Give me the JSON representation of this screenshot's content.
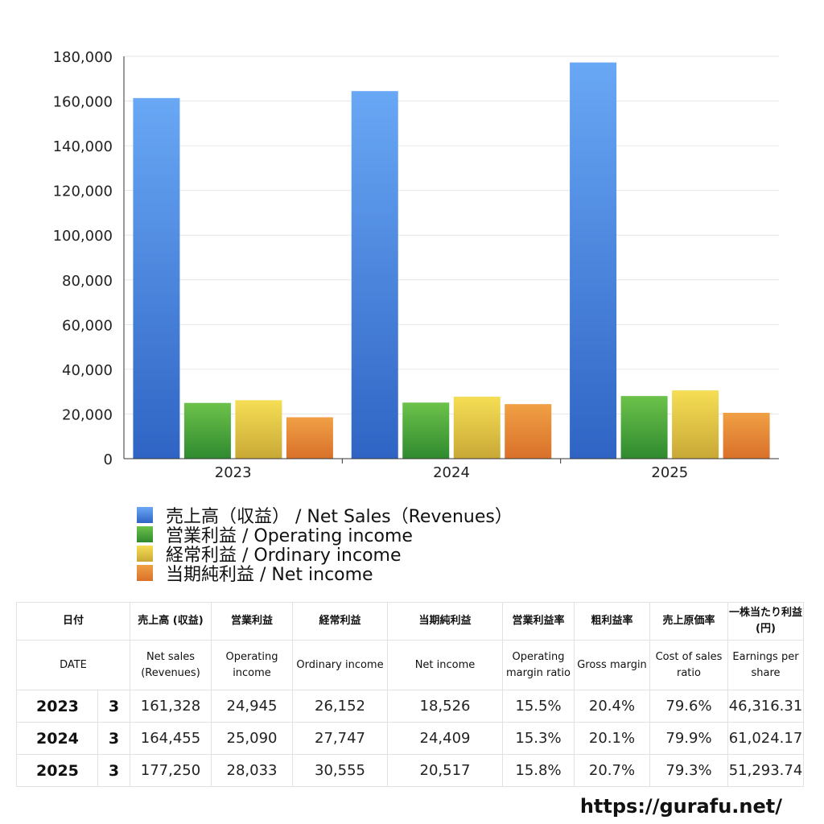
{
  "chart_data": {
    "type": "bar",
    "categories": [
      "2023",
      "2024",
      "2025"
    ],
    "series": [
      {
        "name": "売上高（収益） / Net Sales（Revenues）",
        "values": [
          161328,
          164455,
          177250
        ],
        "color_top": "#69a8f5",
        "color_bottom": "#2f64c4"
      },
      {
        "name": "営業利益 / Operating income",
        "values": [
          24945,
          25090,
          28033
        ],
        "color_top": "#6cc24a",
        "color_bottom": "#2f8a2f"
      },
      {
        "name": "経常利益 / Ordinary income",
        "values": [
          26152,
          27747,
          30555
        ],
        "color_top": "#f5de55",
        "color_bottom": "#c9a836"
      },
      {
        "name": "当期純利益 / Net income",
        "values": [
          18526,
          24409,
          20517
        ],
        "color_top": "#f0a045",
        "color_bottom": "#d9702a"
      }
    ],
    "ylim": [
      0,
      180000
    ],
    "yticks": [
      "0",
      "20,000",
      "40,000",
      "60,000",
      "80,000",
      "100,000",
      "120,000",
      "140,000",
      "160,000",
      "180,000"
    ],
    "grid": true,
    "legend_position": "bottom"
  },
  "table": {
    "header_jp": [
      "日付",
      "売上高 (収益)",
      "営業利益",
      "経常利益",
      "当期純利益",
      "営業利益率",
      "粗利益率",
      "売上原価率",
      "一株当たり利益(円)"
    ],
    "header_en": [
      "DATE",
      "Net sales (Revenues)",
      "Operating income",
      "Ordinary income",
      "Net income",
      "Operating margin ratio",
      "Gross margin",
      "Cost of sales ratio",
      "Earnings per share"
    ],
    "rows": [
      {
        "year": "2023",
        "month": "3",
        "values": [
          "161,328",
          "24,945",
          "26,152",
          "18,526",
          "15.5%",
          "20.4%",
          "79.6%",
          "46,316.31"
        ]
      },
      {
        "year": "2024",
        "month": "3",
        "values": [
          "164,455",
          "25,090",
          "27,747",
          "24,409",
          "15.3%",
          "20.1%",
          "79.9%",
          "61,024.17"
        ]
      },
      {
        "year": "2025",
        "month": "3",
        "values": [
          "177,250",
          "28,033",
          "30,555",
          "20,517",
          "15.8%",
          "20.7%",
          "79.3%",
          "51,293.74"
        ]
      }
    ]
  },
  "site_url": "https://gurafu.net/"
}
